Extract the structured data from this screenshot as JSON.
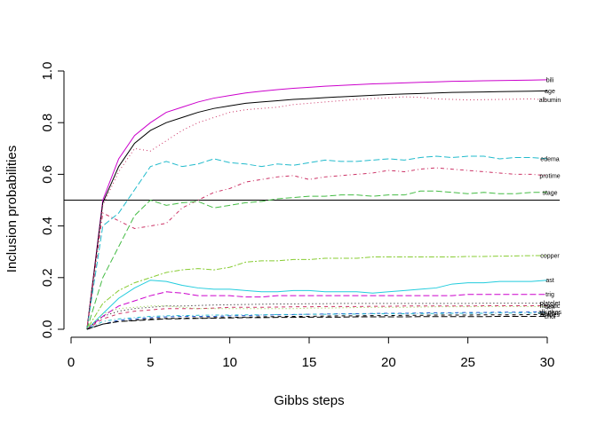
{
  "chart_data": {
    "type": "line",
    "xlabel": "Gibbs steps",
    "ylabel": "Inclusion probabilities",
    "xlim": [
      0,
      30
    ],
    "ylim": [
      0,
      1
    ],
    "xticks": [
      "0",
      "5",
      "10",
      "15",
      "20",
      "25",
      "30"
    ],
    "yticks": [
      "0.0",
      "0.2",
      "0.4",
      "0.6",
      "0.8",
      "1.0"
    ],
    "xtick_values": [
      0,
      5,
      10,
      15,
      20,
      25,
      30
    ],
    "ytick_values": [
      0,
      0.2,
      0.4,
      0.6,
      0.8,
      1.0
    ],
    "reference_line": 0.5,
    "x": [
      1,
      2,
      3,
      4,
      5,
      6,
      7,
      8,
      9,
      10,
      11,
      12,
      13,
      14,
      15,
      16,
      17,
      18,
      19,
      20,
      21,
      22,
      23,
      24,
      25,
      26,
      27,
      28,
      29,
      30
    ],
    "series": [
      {
        "name": "bili",
        "color": "#cc00cc",
        "dash": "solid",
        "values": [
          0.0,
          0.5,
          0.66,
          0.75,
          0.8,
          0.84,
          0.86,
          0.88,
          0.895,
          0.905,
          0.915,
          0.922,
          0.928,
          0.933,
          0.937,
          0.941,
          0.944,
          0.947,
          0.95,
          0.952,
          0.954,
          0.956,
          0.958,
          0.96,
          0.961,
          0.962,
          0.963,
          0.964,
          0.965,
          0.966
        ]
      },
      {
        "name": "age",
        "color": "#000000",
        "dash": "solid",
        "values": [
          0.0,
          0.49,
          0.63,
          0.72,
          0.77,
          0.8,
          0.82,
          0.84,
          0.855,
          0.865,
          0.875,
          0.88,
          0.885,
          0.89,
          0.893,
          0.897,
          0.9,
          0.903,
          0.906,
          0.909,
          0.911,
          0.913,
          0.915,
          0.917,
          0.918,
          0.919,
          0.92,
          0.921,
          0.922,
          0.923
        ]
      },
      {
        "name": "albumin",
        "color": "#cc3366",
        "dash": "dotted",
        "values": [
          0.0,
          0.48,
          0.61,
          0.7,
          0.69,
          0.73,
          0.77,
          0.8,
          0.82,
          0.84,
          0.85,
          0.855,
          0.86,
          0.87,
          0.875,
          0.88,
          0.885,
          0.89,
          0.893,
          0.896,
          0.9,
          0.898,
          0.892,
          0.89,
          0.888,
          0.889,
          0.89,
          0.891,
          0.892,
          0.888
        ]
      },
      {
        "name": "edema",
        "color": "#22bbcc",
        "dash": "longdash",
        "values": [
          0.0,
          0.4,
          0.45,
          0.54,
          0.63,
          0.65,
          0.63,
          0.64,
          0.66,
          0.645,
          0.64,
          0.63,
          0.64,
          0.635,
          0.645,
          0.655,
          0.65,
          0.65,
          0.655,
          0.66,
          0.655,
          0.665,
          0.67,
          0.665,
          0.67,
          0.67,
          0.66,
          0.665,
          0.665,
          0.66
        ]
      },
      {
        "name": "protime",
        "color": "#cc3366",
        "dash": "dotdash",
        "values": [
          0.0,
          0.45,
          0.42,
          0.39,
          0.4,
          0.41,
          0.47,
          0.5,
          0.53,
          0.545,
          0.57,
          0.58,
          0.59,
          0.595,
          0.58,
          0.59,
          0.595,
          0.6,
          0.605,
          0.615,
          0.61,
          0.62,
          0.625,
          0.62,
          0.615,
          0.61,
          0.605,
          0.6,
          0.6,
          0.595
        ]
      },
      {
        "name": "stage",
        "color": "#44bb44",
        "dash": "longdash",
        "values": [
          0.0,
          0.2,
          0.32,
          0.44,
          0.5,
          0.48,
          0.49,
          0.495,
          0.47,
          0.48,
          0.49,
          0.495,
          0.505,
          0.51,
          0.515,
          0.515,
          0.52,
          0.52,
          0.515,
          0.52,
          0.52,
          0.535,
          0.535,
          0.53,
          0.525,
          0.53,
          0.525,
          0.525,
          0.53,
          0.53
        ]
      },
      {
        "name": "copper",
        "color": "#88cc33",
        "dash": "twodash",
        "values": [
          0.0,
          0.1,
          0.15,
          0.18,
          0.2,
          0.22,
          0.23,
          0.235,
          0.23,
          0.24,
          0.26,
          0.265,
          0.265,
          0.27,
          0.27,
          0.275,
          0.275,
          0.275,
          0.28,
          0.28,
          0.28,
          0.28,
          0.28,
          0.28,
          0.282,
          0.282,
          0.283,
          0.284,
          0.285,
          0.285
        ]
      },
      {
        "name": "ast",
        "color": "#22ccdd",
        "dash": "solid",
        "values": [
          0.0,
          0.06,
          0.12,
          0.16,
          0.19,
          0.185,
          0.17,
          0.16,
          0.155,
          0.155,
          0.15,
          0.145,
          0.145,
          0.15,
          0.15,
          0.145,
          0.145,
          0.145,
          0.14,
          0.145,
          0.15,
          0.155,
          0.16,
          0.175,
          0.18,
          0.18,
          0.185,
          0.185,
          0.185,
          0.19
        ]
      },
      {
        "name": "trig",
        "color": "#cc00cc",
        "dash": "longdash",
        "values": [
          0.0,
          0.05,
          0.09,
          0.11,
          0.13,
          0.145,
          0.14,
          0.13,
          0.13,
          0.13,
          0.125,
          0.125,
          0.13,
          0.13,
          0.13,
          0.13,
          0.13,
          0.13,
          0.13,
          0.13,
          0.13,
          0.13,
          0.13,
          0.13,
          0.135,
          0.135,
          0.135,
          0.135,
          0.135,
          0.135
        ]
      },
      {
        "name": "platelet",
        "color": "#000000",
        "dash": "dotted",
        "values": [
          0.0,
          0.05,
          0.07,
          0.08,
          0.085,
          0.09,
          0.09,
          0.092,
          0.094,
          0.095,
          0.096,
          0.097,
          0.098,
          0.098,
          0.099,
          0.099,
          0.1,
          0.1,
          0.1,
          0.1,
          0.1,
          0.1,
          0.1,
          0.1,
          0.1,
          0.101,
          0.101,
          0.101,
          0.101,
          0.101
        ]
      },
      {
        "name": "hepatic",
        "color": "#cc3366",
        "dash": "dashed",
        "values": [
          0.0,
          0.04,
          0.06,
          0.07,
          0.075,
          0.08,
          0.08,
          0.08,
          0.082,
          0.085,
          0.085,
          0.085,
          0.086,
          0.087,
          0.087,
          0.088,
          0.088,
          0.088,
          0.089,
          0.089,
          0.09,
          0.09,
          0.09,
          0.09,
          0.09,
          0.091,
          0.091,
          0.091,
          0.091,
          0.091
        ]
      },
      {
        "name": "sex",
        "color": "#88cc33",
        "dash": "dotted",
        "values": [
          0.0,
          0.06,
          0.08,
          0.085,
          0.09,
          0.09,
          0.085,
          0.08,
          0.08,
          0.08,
          0.08,
          0.08,
          0.08,
          0.08,
          0.082,
          0.082,
          0.083,
          0.084,
          0.085,
          0.085,
          0.085,
          0.086,
          0.087,
          0.087,
          0.087,
          0.088,
          0.088,
          0.088,
          0.088,
          0.088
        ]
      },
      {
        "name": "alk.phos",
        "color": "#2255cc",
        "dash": "dashed",
        "values": [
          0.0,
          0.02,
          0.035,
          0.04,
          0.045,
          0.048,
          0.05,
          0.05,
          0.05,
          0.052,
          0.053,
          0.055,
          0.056,
          0.057,
          0.058,
          0.059,
          0.06,
          0.06,
          0.061,
          0.062,
          0.062,
          0.063,
          0.064,
          0.064,
          0.065,
          0.065,
          0.066,
          0.066,
          0.067,
          0.067
        ]
      },
      {
        "name": "spiders",
        "color": "#22bbcc",
        "dash": "dotdash",
        "values": [
          0.0,
          0.03,
          0.04,
          0.045,
          0.05,
          0.052,
          0.053,
          0.054,
          0.055,
          0.055,
          0.056,
          0.056,
          0.057,
          0.057,
          0.058,
          0.058,
          0.059,
          0.059,
          0.06,
          0.06,
          0.06,
          0.061,
          0.061,
          0.062,
          0.062,
          0.062,
          0.063,
          0.063,
          0.063,
          0.063
        ]
      },
      {
        "name": "ascites",
        "color": "#000000",
        "dash": "dashed",
        "values": [
          0.0,
          0.02,
          0.03,
          0.035,
          0.04,
          0.042,
          0.043,
          0.044,
          0.045,
          0.046,
          0.047,
          0.048,
          0.049,
          0.05,
          0.05,
          0.051,
          0.052,
          0.052,
          0.053,
          0.053,
          0.054,
          0.054,
          0.055,
          0.055,
          0.055,
          0.056,
          0.056,
          0.056,
          0.057,
          0.057
        ]
      },
      {
        "name": "chol",
        "color": "#000000",
        "dash": "longdash",
        "values": [
          0.0,
          0.02,
          0.03,
          0.033,
          0.037,
          0.04,
          0.041,
          0.042,
          0.043,
          0.044,
          0.045,
          0.045,
          0.046,
          0.046,
          0.047,
          0.047,
          0.047,
          0.048,
          0.048,
          0.048,
          0.048,
          0.049,
          0.049,
          0.049,
          0.049,
          0.049,
          0.05,
          0.05,
          0.05,
          0.05
        ]
      }
    ]
  }
}
